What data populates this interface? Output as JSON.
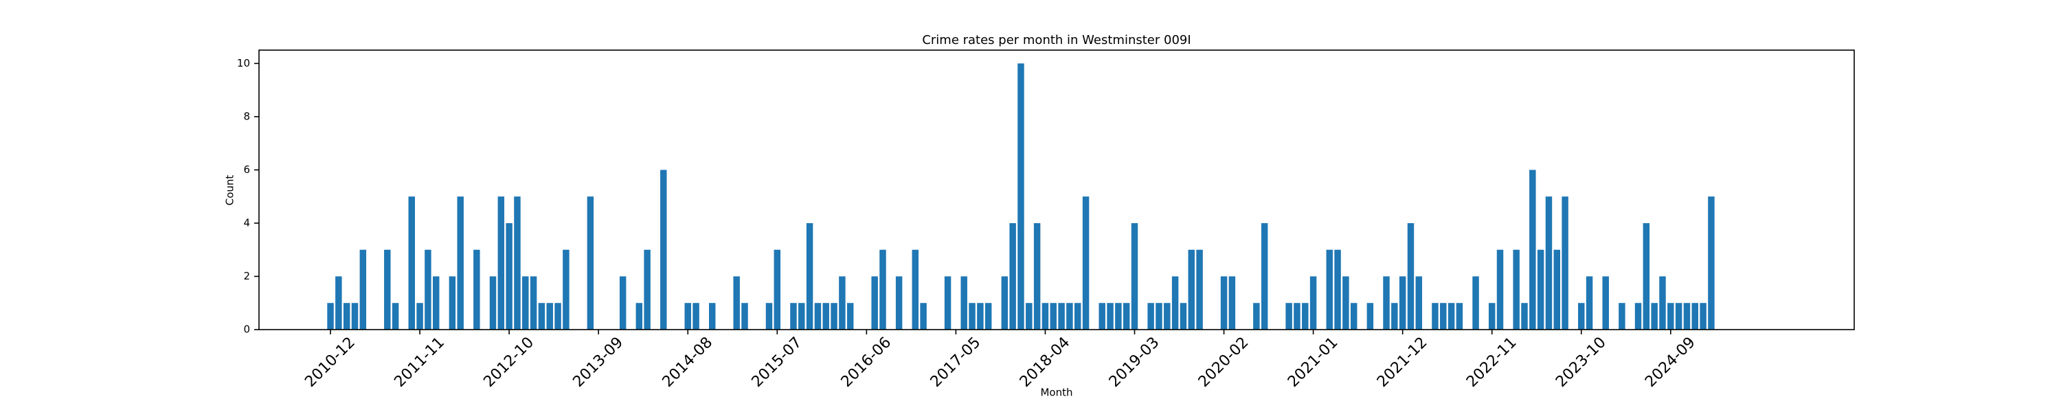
{
  "chart_data": {
    "type": "bar",
    "title": "Crime rates per month in Westminster 009I",
    "x_label": "Month",
    "y_label": "Count",
    "color": "#1f77b4",
    "categories": [
      "2010-12",
      null,
      null,
      null,
      null,
      null,
      null,
      null,
      null,
      null,
      null,
      "2011-11",
      null,
      null,
      null,
      null,
      null,
      null,
      null,
      null,
      null,
      null,
      "2012-10",
      null,
      null,
      null,
      null,
      null,
      null,
      null,
      null,
      null,
      null,
      "2013-09",
      null,
      null,
      null,
      null,
      null,
      null,
      null,
      null,
      null,
      null,
      "2014-08",
      null,
      null,
      null,
      null,
      null,
      null,
      null,
      null,
      null,
      null,
      "2015-07",
      null,
      null,
      null,
      null,
      null,
      null,
      null,
      null,
      null,
      null,
      "2016-06",
      null,
      null,
      null,
      null,
      null,
      null,
      null,
      null,
      null,
      null,
      "2017-05",
      null,
      null,
      null,
      null,
      null,
      null,
      null,
      null,
      null,
      null,
      "2018-04",
      null,
      null,
      null,
      null,
      null,
      null,
      null,
      null,
      null,
      null,
      "2019-03",
      null,
      null,
      null,
      null,
      null,
      null,
      null,
      null,
      null,
      null,
      "2020-02",
      null,
      null,
      null,
      null,
      null,
      null,
      null,
      null,
      null,
      null,
      "2021-01",
      null,
      null,
      null,
      null,
      null,
      null,
      null,
      null,
      null,
      null,
      "2021-12",
      null,
      null,
      null,
      null,
      null,
      null,
      null,
      null,
      null,
      null,
      "2022-11",
      null,
      null,
      null,
      null,
      null,
      null,
      null,
      null,
      null,
      null,
      "2023-10",
      null,
      null,
      null,
      null,
      null,
      null,
      null,
      null,
      null,
      null,
      "2024-09",
      null,
      null,
      null,
      null,
      null
    ],
    "values": [
      1,
      2,
      1,
      1,
      3,
      0,
      0,
      3,
      1,
      0,
      5,
      1,
      3,
      2,
      0,
      2,
      5,
      0,
      3,
      0,
      2,
      5,
      4,
      5,
      2,
      2,
      1,
      1,
      1,
      3,
      0,
      0,
      5,
      0,
      0,
      0,
      2,
      0,
      1,
      3,
      0,
      6,
      0,
      0,
      1,
      1,
      0,
      1,
      0,
      0,
      2,
      1,
      0,
      0,
      1,
      3,
      0,
      1,
      1,
      4,
      1,
      1,
      1,
      2,
      1,
      0,
      0,
      2,
      3,
      0,
      2,
      0,
      3,
      1,
      0,
      0,
      2,
      0,
      2,
      1,
      1,
      1,
      0,
      2,
      4,
      10,
      1,
      4,
      1,
      1,
      1,
      1,
      1,
      5,
      0,
      1,
      1,
      1,
      1,
      4,
      0,
      1,
      1,
      1,
      2,
      1,
      3,
      3,
      0,
      0,
      2,
      2,
      0,
      0,
      1,
      4,
      0,
      0,
      1,
      1,
      1,
      2,
      0,
      3,
      3,
      2,
      1,
      0,
      1,
      0,
      2,
      1,
      2,
      4,
      2,
      0,
      1,
      1,
      1,
      1,
      0,
      2,
      0,
      1,
      3,
      0,
      3,
      1,
      6,
      3,
      5,
      3,
      5,
      0,
      1,
      2,
      0,
      2,
      0,
      1,
      0,
      1,
      4,
      1,
      2,
      1,
      1,
      1,
      1,
      1,
      5
    ],
    "ylim": [
      0,
      10.5
    ],
    "yticks": [
      0,
      2,
      4,
      6,
      8,
      10
    ],
    "grid": false
  }
}
